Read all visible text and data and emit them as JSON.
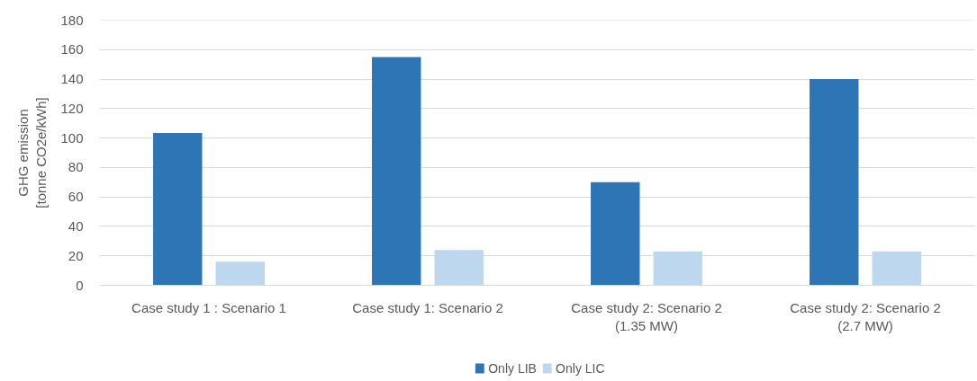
{
  "chart_data": {
    "type": "bar",
    "ylabel": "GHG emission\n[tonne CO2e/kWh]",
    "categories": [
      "Case study 1 : Scenario 1",
      "Case study 1: Scenario 2",
      "Case study 2: Scenario 2\n(1.35 MW)",
      "Case study 2: Scenario 2\n(2.7 MW)"
    ],
    "series": [
      {
        "name": "Only LIB",
        "color": "#2e75b6",
        "values": [
          103.5,
          155,
          70,
          140
        ]
      },
      {
        "name": "Only LIC",
        "color": "#bdd7ee",
        "values": [
          16,
          24,
          23,
          23
        ]
      }
    ],
    "ylim": [
      0,
      180
    ],
    "yticks": [
      0,
      20,
      40,
      60,
      80,
      100,
      120,
      140,
      160,
      180
    ],
    "grid": "y",
    "legend": "bottom"
  }
}
